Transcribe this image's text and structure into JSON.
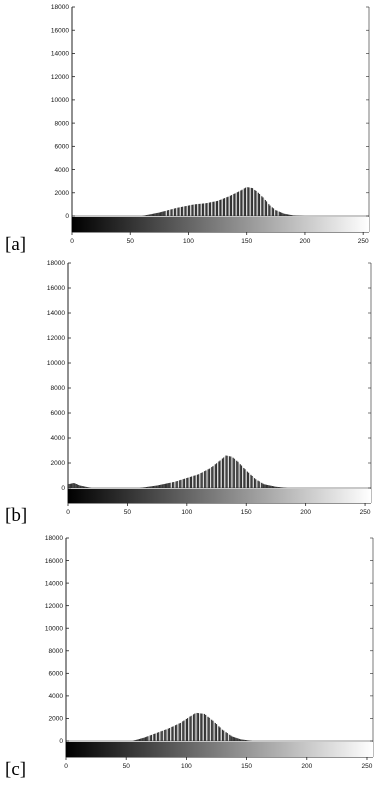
{
  "figure": {
    "panel_labels": [
      "[a]",
      "[b]",
      "[c]"
    ]
  },
  "colors": {
    "axes": "#222222",
    "bar": "#333333",
    "bar_highlight": "#dddddd",
    "background": "#ffffff"
  },
  "chart_data": [
    {
      "type": "bar",
      "panel_label": "[a]",
      "xlim": [
        0,
        255
      ],
      "ylim": [
        -1000,
        18000
      ],
      "yticks": [
        0,
        2000,
        4000,
        6000,
        8000,
        10000,
        12000,
        14000,
        16000,
        18000
      ],
      "ytick_labels": [
        "0",
        "2000",
        "4000",
        "6000",
        "8000",
        "10000",
        "12000",
        "14000",
        "16000",
        "18000"
      ],
      "xticks": [
        0,
        50,
        100,
        150,
        200,
        250
      ],
      "xtick_labels": [
        "0",
        "50",
        "100",
        "150",
        "200",
        "250"
      ],
      "grayscale_bar": true,
      "histogram_profile": [
        [
          0,
          0
        ],
        [
          60,
          0
        ],
        [
          75,
          300
        ],
        [
          90,
          700
        ],
        [
          105,
          1000
        ],
        [
          115,
          1100
        ],
        [
          125,
          1300
        ],
        [
          135,
          1700
        ],
        [
          145,
          2200
        ],
        [
          150,
          2500
        ],
        [
          155,
          2400
        ],
        [
          160,
          2000
        ],
        [
          165,
          1500
        ],
        [
          170,
          900
        ],
        [
          175,
          500
        ],
        [
          182,
          200
        ],
        [
          190,
          50
        ],
        [
          200,
          0
        ],
        [
          255,
          0
        ]
      ]
    },
    {
      "type": "bar",
      "panel_label": "[b]",
      "xlim": [
        0,
        255
      ],
      "ylim": [
        -1000,
        18000
      ],
      "yticks": [
        0,
        2000,
        4000,
        6000,
        8000,
        10000,
        12000,
        14000,
        16000,
        18000
      ],
      "ytick_labels": [
        "0",
        "2000",
        "4000",
        "6000",
        "8000",
        "10000",
        "12000",
        "14000",
        "16000",
        "18000"
      ],
      "xticks": [
        0,
        50,
        100,
        150,
        200,
        250
      ],
      "xtick_labels": [
        "0",
        "50",
        "100",
        "150",
        "200",
        "250"
      ],
      "grayscale_bar": true,
      "histogram_profile": [
        [
          0,
          300
        ],
        [
          5,
          400
        ],
        [
          10,
          200
        ],
        [
          20,
          0
        ],
        [
          60,
          0
        ],
        [
          75,
          200
        ],
        [
          90,
          500
        ],
        [
          100,
          800
        ],
        [
          110,
          1100
        ],
        [
          120,
          1600
        ],
        [
          128,
          2200
        ],
        [
          133,
          2600
        ],
        [
          138,
          2500
        ],
        [
          143,
          2100
        ],
        [
          150,
          1400
        ],
        [
          158,
          700
        ],
        [
          165,
          300
        ],
        [
          175,
          100
        ],
        [
          185,
          0
        ],
        [
          255,
          0
        ]
      ]
    },
    {
      "type": "bar",
      "panel_label": "[c]",
      "xlim": [
        0,
        255
      ],
      "ylim": [
        -1000,
        18000
      ],
      "yticks": [
        0,
        2000,
        4000,
        6000,
        8000,
        10000,
        12000,
        14000,
        16000,
        18000
      ],
      "ytick_labels": [
        "0",
        "2000",
        "4000",
        "6000",
        "8000",
        "10000",
        "12000",
        "14000",
        "16000",
        "18000"
      ],
      "xticks": [
        0,
        50,
        100,
        150,
        200,
        250
      ],
      "xtick_labels": [
        "0",
        "50",
        "100",
        "150",
        "200",
        "250"
      ],
      "grayscale_bar": true,
      "histogram_profile": [
        [
          0,
          0
        ],
        [
          55,
          0
        ],
        [
          65,
          300
        ],
        [
          75,
          700
        ],
        [
          85,
          1100
        ],
        [
          95,
          1600
        ],
        [
          102,
          2100
        ],
        [
          108,
          2500
        ],
        [
          115,
          2400
        ],
        [
          122,
          1800
        ],
        [
          130,
          1000
        ],
        [
          138,
          400
        ],
        [
          145,
          150
        ],
        [
          155,
          0
        ],
        [
          255,
          0
        ]
      ]
    }
  ]
}
